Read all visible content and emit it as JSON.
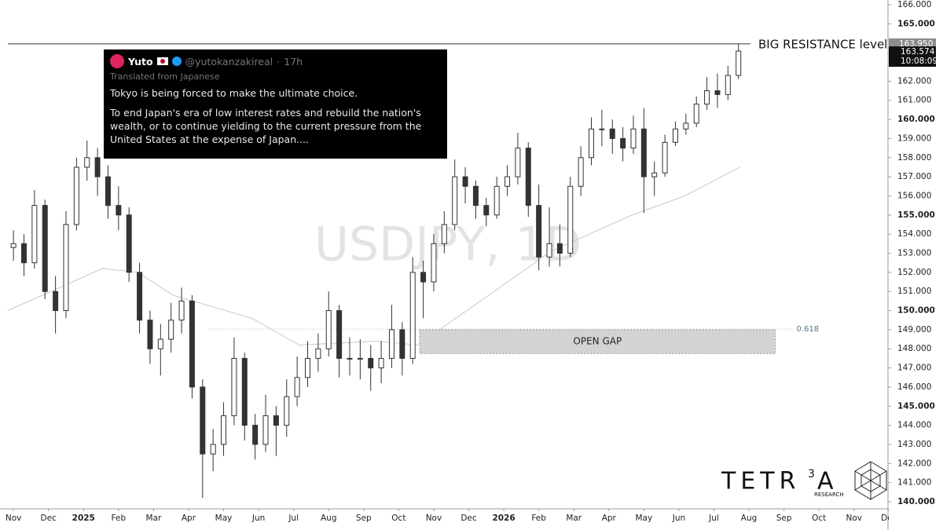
{
  "chart_data": {
    "type": "candlestick",
    "watermark": "USDJPY, 1D",
    "x": [
      0,
      0.3,
      0.6,
      0.9,
      1.2,
      1.5,
      1.8,
      2.1,
      2.4,
      2.7,
      3,
      3.3,
      3.6,
      3.9,
      4.2,
      4.5,
      4.8,
      5.1,
      5.4,
      5.7,
      6,
      6.3,
      6.6,
      6.9,
      7.2,
      7.5,
      7.8,
      8.1,
      8.4,
      8.7,
      9,
      9.3,
      9.6,
      9.9,
      10.2,
      10.5,
      10.8,
      11.1,
      11.4,
      11.7,
      12,
      12.3,
      12.6,
      12.9,
      13.2,
      13.5,
      13.8,
      14.1,
      14.4,
      14.7,
      15,
      15.3,
      15.6,
      15.9,
      16.2,
      16.5,
      16.8,
      17.1,
      17.4,
      17.7,
      18,
      18.3,
      18.6,
      18.9,
      19.2,
      19.5,
      19.8,
      20.1,
      20.4,
      20.7
    ],
    "open": [
      153.3,
      153.5,
      152.5,
      155.5,
      151,
      150,
      154.5,
      157.5,
      158,
      157,
      155.5,
      155,
      152,
      149.5,
      148,
      148.5,
      149.5,
      150.5,
      146,
      142.5,
      143,
      144.5,
      147.5,
      144,
      143,
      144.5,
      144,
      145.5,
      146.5,
      147.5,
      148,
      150,
      147.5,
      147.5,
      147.5,
      147,
      147.5,
      149,
      147.5,
      152,
      151.5,
      153.5,
      154.5,
      157,
      156.5,
      155.5,
      155,
      156.5,
      157,
      158.5,
      155.5,
      152.8,
      153.5,
      153,
      156.5,
      158,
      159.5,
      159.5,
      159,
      158.5,
      159.5,
      157,
      157.2,
      158.8,
      159.5,
      159.8,
      160.8,
      161.5,
      161.3,
      162.3
    ],
    "high": [
      154.2,
      154,
      156.3,
      155.8,
      151.8,
      155.2,
      158,
      158.9,
      158.5,
      157.6,
      156.5,
      155.4,
      152.5,
      150,
      149.3,
      150.4,
      151.2,
      150.8,
      146.4,
      143.8,
      145.2,
      148.6,
      147.8,
      144.6,
      145.6,
      145,
      146.4,
      147.6,
      148.4,
      148.8,
      151,
      150.3,
      148.6,
      148.5,
      148.2,
      148.4,
      150.3,
      149.4,
      152.8,
      152.6,
      154,
      155.2,
      157.9,
      157.5,
      156.8,
      155.9,
      157,
      157.6,
      159.3,
      158.8,
      156.6,
      155.4,
      154.5,
      157,
      158.6,
      160.1,
      160.5,
      160,
      159.6,
      160.2,
      160.6,
      157.8,
      159.2,
      159.9,
      160.3,
      161.2,
      162.2,
      162.4,
      162.8,
      163.95
    ],
    "low": [
      152.6,
      151.8,
      152.2,
      150.6,
      148.8,
      149.6,
      154.2,
      156.8,
      156,
      154.8,
      154.2,
      151.5,
      148.8,
      147.2,
      146.6,
      147.8,
      148.8,
      145.4,
      140.2,
      141.6,
      142.4,
      144,
      143.2,
      142.2,
      142.6,
      142.4,
      143.4,
      145,
      146,
      146.8,
      147.6,
      146.5,
      146.6,
      146.4,
      145.8,
      146.2,
      147,
      146.6,
      147.2,
      149.6,
      151,
      153,
      154.2,
      155.6,
      154.8,
      154.4,
      154.8,
      156,
      156.6,
      154.9,
      152.1,
      152.3,
      152.3,
      152.8,
      156,
      157.6,
      158.6,
      158.2,
      157.8,
      158.2,
      155.1,
      156,
      157,
      158.6,
      159.2,
      159.6,
      160.5,
      160.6,
      161,
      162.1
    ],
    "close": [
      153.5,
      152.5,
      155.5,
      151,
      150,
      154.5,
      157.5,
      158,
      157,
      155.5,
      155,
      152,
      149.5,
      148,
      148.5,
      149.5,
      150.5,
      146,
      142.5,
      143,
      144.5,
      147.5,
      144,
      143,
      144.5,
      144,
      145.5,
      146.5,
      147.5,
      148,
      150,
      147.5,
      147.5,
      147.5,
      147,
      147.5,
      149,
      147.5,
      152,
      151.5,
      153.5,
      154.5,
      157,
      156.5,
      155.5,
      155,
      156.5,
      157,
      158.5,
      155.5,
      152.8,
      153.5,
      153,
      156.5,
      158,
      159.5,
      159.5,
      159,
      158.5,
      159.5,
      157,
      157.2,
      158.8,
      159.5,
      159.8,
      160.8,
      161.5,
      161.3,
      162.3,
      163.574
    ],
    "moving_average": {
      "color": "#c8c8c8",
      "x": [
        -0.16,
        2.54,
        3.55,
        4.56,
        6.81,
        8.16,
        10.4,
        11.53,
        13.1,
        15.35,
        17.6,
        19.17,
        20.74
      ],
      "values": [
        150,
        152.2,
        152,
        150.8,
        149.6,
        148.2,
        148.4,
        148.2,
        150.2,
        153.1,
        154.95,
        156,
        157.5
      ]
    },
    "xlim": [
      -0.16,
      24.97
    ],
    "xticks": [
      {
        "value": 0,
        "label": "Nov"
      },
      {
        "value": 1,
        "label": "Dec"
      },
      {
        "value": 2,
        "label": "2025"
      },
      {
        "value": 3,
        "label": "Feb"
      },
      {
        "value": 4,
        "label": "Mar"
      },
      {
        "value": 5,
        "label": "Apr"
      },
      {
        "value": 6,
        "label": "May"
      },
      {
        "value": 7,
        "label": "Jun"
      },
      {
        "value": 8,
        "label": "Jul"
      },
      {
        "value": 9,
        "label": "Aug"
      },
      {
        "value": 10,
        "label": "Sep"
      },
      {
        "value": 11,
        "label": "Oct"
      },
      {
        "value": 12,
        "label": "Nov"
      },
      {
        "value": 13,
        "label": "Dec"
      },
      {
        "value": 14,
        "label": "2026"
      },
      {
        "value": 15,
        "label": "Feb"
      },
      {
        "value": 16,
        "label": "Mar"
      },
      {
        "value": 17,
        "label": "Apr"
      },
      {
        "value": 18,
        "label": "May"
      },
      {
        "value": 19,
        "label": "Jun"
      },
      {
        "value": 20,
        "label": "Jul"
      },
      {
        "value": 21,
        "label": "Aug"
      },
      {
        "value": 22,
        "label": "Sep"
      },
      {
        "value": 23,
        "label": "Oct"
      },
      {
        "value": 24,
        "label": "Nov"
      },
      {
        "value": 25,
        "label": "Dec"
      }
    ],
    "ylim": [
      140,
      166
    ],
    "yticks": [
      {
        "value": 140,
        "label": "140.000"
      },
      {
        "value": 141,
        "label": "141.000"
      },
      {
        "value": 142,
        "label": "142.000"
      },
      {
        "value": 143,
        "label": "143.000"
      },
      {
        "value": 144,
        "label": "144.000"
      },
      {
        "value": 145,
        "label": "145.000"
      },
      {
        "value": 146,
        "label": "146.000"
      },
      {
        "value": 147,
        "label": "147.000"
      },
      {
        "value": 148,
        "label": "148.000"
      },
      {
        "value": 149,
        "label": "149.000"
      },
      {
        "value": 150,
        "label": "150.000"
      },
      {
        "value": 151,
        "label": "151.000"
      },
      {
        "value": 152,
        "label": "152.000"
      },
      {
        "value": 153,
        "label": "153.000"
      },
      {
        "value": 154,
        "label": "154.000"
      },
      {
        "value": 155,
        "label": "155.000"
      },
      {
        "value": 156,
        "label": "156.000"
      },
      {
        "value": 157,
        "label": "157.000"
      },
      {
        "value": 158,
        "label": "158.000"
      },
      {
        "value": 159,
        "label": "159.000"
      },
      {
        "value": 160,
        "label": "160.000"
      },
      {
        "value": 161,
        "label": "161.000"
      },
      {
        "value": 162,
        "label": "162.000"
      },
      {
        "value": 165,
        "label": "165.000"
      },
      {
        "value": 166,
        "label": "166.000"
      }
    ],
    "resistance": {
      "value": 163.95,
      "value_label": "163.950",
      "label": "BIG RESISTANCE level"
    },
    "last_price": {
      "value_label": "163.574",
      "countdown": "10:08:09"
    },
    "fib_level": {
      "value": 149.03,
      "label": "0.618",
      "x": [
        5.57,
        22.31
      ]
    },
    "open_gap": {
      "label": "OPEN GAP",
      "x": [
        11.6,
        21.75
      ],
      "y": [
        147.75,
        149.0
      ]
    }
  },
  "tweet": {
    "name": "Yuto",
    "handle": "@yutokanzakireal",
    "time": "17h",
    "translated": "Translated from Japanese",
    "paragraphs": [
      "Tokyo is being forced to make the ultimate choice.",
      "To end Japan's era of low interest rates and rebuild the nation's wealth, or to continue yielding to the current pressure from the United States at the expense of Japan...."
    ]
  },
  "logo": {
    "text": "TETR",
    "sup": "3",
    "end": "A",
    "sub": "RESEARCH"
  }
}
